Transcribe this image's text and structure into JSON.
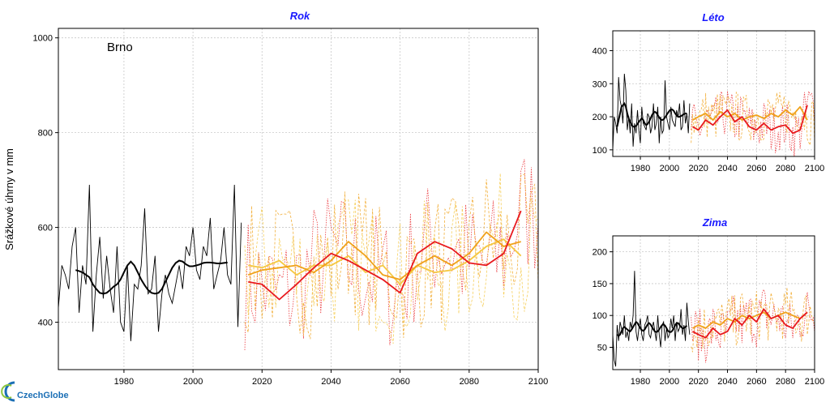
{
  "ylabel": "Srážkové úhrny v mm",
  "logo": {
    "text": "CzechGlobe",
    "color": "#1b6fb5"
  },
  "colors": {
    "observed": "#000000",
    "model_red": "#e8191e",
    "model_orange": "#f0a21a",
    "model_yellow": "#f5c842",
    "title": "#1a1aff",
    "grid": "#c8c8c8"
  },
  "chart_data": [
    {
      "id": "rok",
      "type": "line",
      "title": "Rok",
      "station": "Brno",
      "xlim": [
        1961,
        2100
      ],
      "ylim": [
        300,
        1020
      ],
      "xticks": [
        1980,
        2000,
        2020,
        2040,
        2060,
        2080,
        2100
      ],
      "yticks": [
        400,
        600,
        800,
        1000
      ],
      "observed": {
        "start_year": 1961,
        "end_year": 2014,
        "values": [
          430,
          520,
          500,
          470,
          560,
          600,
          420,
          520,
          480,
          690,
          380,
          500,
          580,
          450,
          540,
          470,
          420,
          560,
          400,
          380,
          520,
          360,
          480,
          470,
          520,
          640,
          460,
          470,
          540,
          380,
          460,
          500,
          460,
          440,
          480,
          520,
          470,
          560,
          540,
          600,
          510,
          490,
          560,
          540,
          620,
          470,
          500,
          530,
          600,
          500,
          480,
          690,
          390,
          610
        ],
        "smooth_start": 1966,
        "smooth_end": 2010,
        "smooth": [
          510,
          508,
          505,
          500,
          495,
          480,
          470,
          462,
          460,
          462,
          468,
          475,
          480,
          490,
          505,
          520,
          528,
          520,
          505,
          490,
          478,
          468,
          462,
          460,
          462,
          470,
          485,
          500,
          515,
          525,
          530,
          528,
          522,
          518,
          518,
          520,
          522,
          525,
          526,
          526,
          525,
          524,
          524,
          525,
          526
        ]
      },
      "model_smooth": [
        {
          "name": "",
          "color": "#e8191e",
          "years": [
            2016,
            2020,
            2025,
            2030,
            2035,
            2040,
            2045,
            2050,
            2055,
            2060,
            2065,
            2070,
            2075,
            2080,
            2085,
            2090,
            2095
          ],
          "values": [
            485,
            480,
            448,
            480,
            515,
            545,
            530,
            510,
            490,
            462,
            545,
            570,
            555,
            525,
            520,
            545,
            635
          ]
        },
        {
          "name": "",
          "color": "#f0a21a",
          "years": [
            2016,
            2020,
            2025,
            2030,
            2035,
            2040,
            2045,
            2050,
            2055,
            2060,
            2065,
            2070,
            2075,
            2080,
            2085,
            2090,
            2095
          ],
          "values": [
            500,
            510,
            515,
            520,
            505,
            530,
            570,
            540,
            500,
            490,
            520,
            540,
            520,
            545,
            590,
            560,
            570
          ]
        },
        {
          "name": "",
          "color": "#f5c842",
          "years": [
            2016,
            2020,
            2025,
            2030,
            2035,
            2040,
            2045,
            2050,
            2055,
            2060,
            2065,
            2070,
            2075,
            2080,
            2085,
            2090,
            2095
          ],
          "values": [
            520,
            515,
            530,
            500,
            520,
            520,
            540,
            505,
            520,
            480,
            520,
            505,
            510,
            530,
            560,
            575,
            540
          ]
        }
      ]
    },
    {
      "id": "leto",
      "type": "line",
      "title": "Léto",
      "xlim": [
        1961,
        2100
      ],
      "ylim": [
        80,
        460
      ],
      "xticks": [
        1980,
        2000,
        2020,
        2040,
        2060,
        2080,
        2100
      ],
      "yticks": [
        100,
        200,
        300,
        400
      ],
      "observed": {
        "start_year": 1961,
        "end_year": 2014,
        "values": [
          100,
          200,
          180,
          150,
          320,
          250,
          230,
          180,
          330,
          280,
          160,
          200,
          150,
          240,
          110,
          180,
          150,
          220,
          160,
          120,
          230,
          180,
          170,
          160,
          210,
          200,
          150,
          170,
          240,
          160,
          180,
          230,
          120,
          200,
          150,
          160,
          310,
          200,
          180,
          160,
          230,
          190,
          180,
          170,
          220,
          200,
          240,
          160,
          170,
          250,
          180,
          210,
          150,
          240
        ],
        "smooth_start": 1964,
        "smooth_end": 2012,
        "smooth": [
          170,
          190,
          210,
          230,
          235,
          240,
          230,
          210,
          195,
          185,
          175,
          170,
          170,
          172,
          178,
          185,
          190,
          195,
          190,
          180,
          175,
          178,
          185,
          195,
          205,
          212,
          215,
          212,
          205,
          198,
          192,
          190,
          192,
          198,
          205,
          212,
          218,
          222,
          222,
          218,
          210,
          204,
          200,
          200,
          202,
          205,
          208,
          210,
          210
        ]
      },
      "model_smooth": [
        {
          "name": "",
          "color": "#e8191e",
          "years": [
            2016,
            2020,
            2025,
            2030,
            2035,
            2040,
            2045,
            2050,
            2055,
            2060,
            2065,
            2070,
            2075,
            2080,
            2085,
            2090,
            2095
          ],
          "values": [
            170,
            160,
            190,
            175,
            200,
            220,
            185,
            200,
            170,
            160,
            180,
            160,
            170,
            175,
            150,
            160,
            235
          ]
        },
        {
          "name": "",
          "color": "#f0a21a",
          "years": [
            2016,
            2020,
            2025,
            2030,
            2035,
            2040,
            2045,
            2050,
            2055,
            2060,
            2065,
            2070,
            2075,
            2080,
            2085,
            2090,
            2095
          ],
          "values": [
            190,
            200,
            210,
            190,
            215,
            200,
            210,
            190,
            200,
            205,
            195,
            210,
            200,
            220,
            205,
            230,
            190
          ]
        }
      ]
    },
    {
      "id": "zima",
      "type": "line",
      "title": "Zima",
      "xlim": [
        1961,
        2100
      ],
      "ylim": [
        15,
        225
      ],
      "xticks": [
        1980,
        2000,
        2020,
        2040,
        2060,
        2080,
        2100
      ],
      "yticks": [
        50,
        100,
        150,
        200
      ],
      "observed": {
        "start_year": 1961,
        "end_year": 2014,
        "values": [
          70,
          30,
          20,
          85,
          60,
          90,
          80,
          70,
          100,
          65,
          75,
          60,
          90,
          80,
          100,
          170,
          75,
          60,
          80,
          95,
          70,
          60,
          85,
          90,
          100,
          70,
          65,
          80,
          90,
          75,
          60,
          100,
          70,
          50,
          85,
          90,
          60,
          80,
          65,
          70,
          95,
          80,
          100,
          60,
          90,
          75,
          80,
          110,
          70,
          85,
          60,
          120,
          90,
          70
        ],
        "smooth_start": 1964,
        "smooth_end": 2012,
        "smooth": [
          70,
          68,
          70,
          75,
          80,
          82,
          80,
          78,
          76,
          75,
          78,
          82,
          86,
          90,
          88,
          84,
          80,
          77,
          76,
          78,
          82,
          86,
          88,
          86,
          82,
          78,
          75,
          74,
          75,
          78,
          82,
          85,
          86,
          84,
          80,
          76,
          74,
          74,
          76,
          80,
          85,
          88,
          88,
          85,
          82,
          80,
          80,
          82,
          84
        ]
      },
      "model_smooth": [
        {
          "name": "",
          "color": "#e8191e",
          "years": [
            2016,
            2020,
            2025,
            2030,
            2035,
            2040,
            2045,
            2050,
            2055,
            2060,
            2065,
            2070,
            2075,
            2080,
            2085,
            2090,
            2095
          ],
          "values": [
            75,
            70,
            65,
            80,
            70,
            75,
            95,
            85,
            100,
            90,
            110,
            95,
            100,
            85,
            80,
            95,
            105
          ]
        },
        {
          "name": "",
          "color": "#f0a21a",
          "years": [
            2016,
            2020,
            2025,
            2030,
            2035,
            2040,
            2045,
            2050,
            2055,
            2060,
            2065,
            2070,
            2075,
            2080,
            2085,
            2090,
            2095
          ],
          "values": [
            80,
            85,
            80,
            90,
            85,
            95,
            90,
            100,
            95,
            100,
            105,
            95,
            100,
            105,
            100,
            95,
            105
          ]
        }
      ]
    }
  ]
}
